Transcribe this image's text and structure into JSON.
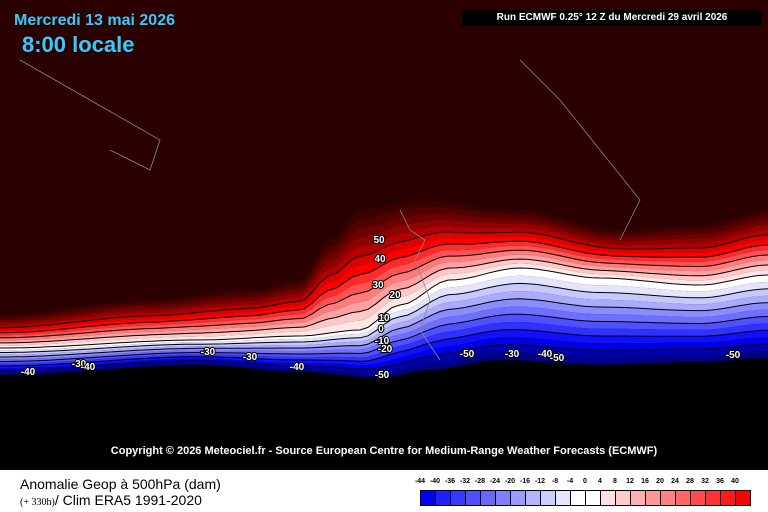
{
  "header": {
    "date": "Mercredi 13 mai 2026",
    "time": "8:00 locale",
    "run": "Run ECMWF 0.25° 12 Z du Mercredi 29 avril 2026"
  },
  "copyright": "Copyright © 2026 Meteociel.fr - Source European Centre for Medium-Range Weather Forecasts (ECMWF)",
  "footer": {
    "title": "Anomalie Geop à 500hPa (dam)",
    "lead": "(+ 330h)",
    "clim": "/ Clim ERA5 1991-2020"
  },
  "legend": {
    "ticks": [
      "-44",
      "-40",
      "-36",
      "-32",
      "-28",
      "-24",
      "-20",
      "-16",
      "-12",
      "-8",
      "-4",
      "0",
      "4",
      "8",
      "12",
      "16",
      "20",
      "24",
      "28",
      "32",
      "36",
      "40"
    ],
    "colors": [
      "#0000ff",
      "#2020ff",
      "#3838ff",
      "#5050ff",
      "#6868ff",
      "#8080ff",
      "#9a9aff",
      "#b4b4ff",
      "#cdcdff",
      "#e4e4ff",
      "#ffffff",
      "#ffffff",
      "#ffe0e4",
      "#ffcaca",
      "#ffb0b0",
      "#ff9898",
      "#ff8080",
      "#ff6666",
      "#ff4c4c",
      "#ff3333",
      "#ff1a1a",
      "#ff0000"
    ]
  },
  "contour_labels": [
    {
      "text": "50",
      "lon": 379,
      "lat": 243
    },
    {
      "text": "40",
      "lon": 380,
      "lat": 262
    },
    {
      "text": "30",
      "lon": 378,
      "lat": 288
    },
    {
      "text": "20",
      "lon": 395,
      "lat": 298
    },
    {
      "text": "10",
      "lon": 384,
      "lat": 321
    },
    {
      "text": "0",
      "lon": 381,
      "lat": 332
    },
    {
      "text": "-10",
      "lon": 382,
      "lat": 344
    },
    {
      "text": "-20",
      "lon": 385,
      "lat": 352
    },
    {
      "text": "-30",
      "lon": 208,
      "lat": 355
    },
    {
      "text": "-30",
      "lon": 250,
      "lat": 360
    },
    {
      "text": "-30",
      "lon": 79,
      "lat": 367
    },
    {
      "text": "-40",
      "lon": 88,
      "lat": 370
    },
    {
      "text": "-40",
      "lon": 28,
      "lat": 375
    },
    {
      "text": "-40",
      "lon": 297,
      "lat": 370
    },
    {
      "text": "-50",
      "lon": 382,
      "lat": 378
    },
    {
      "text": "-50",
      "lon": 467,
      "lat": 357
    },
    {
      "text": "-30",
      "lon": 512,
      "lat": 357
    },
    {
      "text": "-40",
      "lon": 545,
      "lat": 357
    },
    {
      "text": "-50",
      "lon": 557,
      "lat": 361
    },
    {
      "text": "-50",
      "lon": 733,
      "lat": 358
    }
  ]
}
